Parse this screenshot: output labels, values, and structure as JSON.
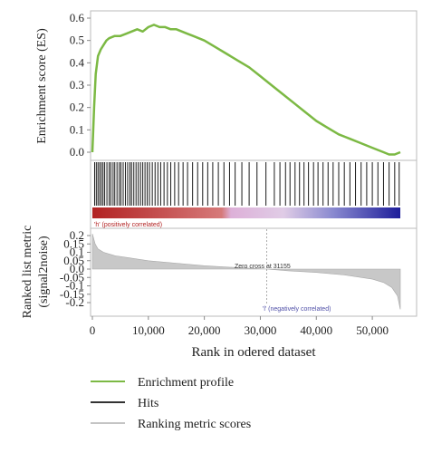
{
  "chart_data": {
    "type": "line",
    "x_axis": {
      "label": "Rank in odered dataset",
      "range": [
        0,
        56000
      ],
      "ticks": [
        0,
        10000,
        20000,
        30000,
        40000,
        50000
      ],
      "tick_labels": [
        "0",
        "10,000",
        "20,000",
        "30,000",
        "40,000",
        "50,000"
      ]
    },
    "enrichment": {
      "ylabel": "Enrichment score (ES)",
      "ylim": [
        -0.02,
        0.6
      ],
      "yticks": [
        0.0,
        0.1,
        0.2,
        0.3,
        0.4,
        0.5,
        0.6
      ],
      "ytick_labels": [
        "0.0",
        "0.1",
        "0.2",
        "0.3",
        "0.4",
        "0.5",
        "0.6"
      ],
      "series": {
        "x": [
          0,
          300,
          600,
          1000,
          1500,
          2000,
          2500,
          3000,
          4000,
          5000,
          6000,
          7000,
          8000,
          9000,
          10000,
          11000,
          12000,
          13000,
          14000,
          15000,
          16000,
          17000,
          18000,
          20000,
          22000,
          24000,
          26000,
          28000,
          30000,
          32000,
          34000,
          36000,
          38000,
          40000,
          42000,
          44000,
          46000,
          48000,
          50000,
          52000,
          53000,
          54000,
          55000
        ],
        "y": [
          0.0,
          0.2,
          0.35,
          0.43,
          0.46,
          0.48,
          0.5,
          0.51,
          0.52,
          0.52,
          0.53,
          0.54,
          0.55,
          0.54,
          0.56,
          0.57,
          0.56,
          0.56,
          0.55,
          0.55,
          0.54,
          0.53,
          0.52,
          0.5,
          0.47,
          0.44,
          0.41,
          0.38,
          0.34,
          0.3,
          0.26,
          0.22,
          0.18,
          0.14,
          0.11,
          0.08,
          0.06,
          0.04,
          0.02,
          0.0,
          -0.01,
          -0.01,
          0.0
        ]
      }
    },
    "hits": {
      "positions": [
        400,
        700,
        1000,
        1300,
        1600,
        1900,
        2200,
        2600,
        3000,
        3300,
        3700,
        4000,
        4400,
        4800,
        5100,
        5500,
        5900,
        6300,
        6700,
        7000,
        7400,
        7800,
        8200,
        8600,
        9000,
        9400,
        9800,
        10200,
        10700,
        11200,
        11700,
        12200,
        12800,
        13400,
        14000,
        14700,
        15400,
        16200,
        17000,
        17900,
        18800,
        19700,
        20600,
        21500,
        22500,
        23500,
        24500,
        25500,
        26700,
        28000,
        29400,
        31000,
        32500,
        33500,
        34500,
        35300,
        36200,
        37000,
        37800,
        38600,
        39500,
        40300,
        41200,
        42100,
        43000,
        44000,
        45000,
        46000,
        47000,
        48000,
        49000,
        50000,
        51000,
        52000,
        53000,
        54000,
        54800
      ]
    },
    "ranked_metric": {
      "ylabel_line1": "Ranked list metric",
      "ylabel_line2": "(signal2noise)",
      "ylim": [
        -0.25,
        0.25
      ],
      "yticks": [
        0.2,
        0.15,
        0.1,
        0.05,
        0.0,
        -0.05,
        -0.1,
        -0.15,
        -0.2
      ],
      "ytick_labels": [
        "0.2",
        "0.15",
        "0.1",
        "0.05",
        "0.0",
        "-0.05",
        "-0.1",
        "-0.15",
        "-0.2"
      ],
      "series": {
        "x": [
          0,
          500,
          1000,
          2000,
          4000,
          6000,
          10000,
          15000,
          20000,
          25000,
          31155,
          35000,
          40000,
          45000,
          50000,
          52000,
          53500,
          54500,
          55000
        ],
        "y": [
          0.21,
          0.15,
          0.12,
          0.1,
          0.08,
          0.07,
          0.05,
          0.035,
          0.02,
          0.01,
          0.0,
          -0.01,
          -0.02,
          -0.035,
          -0.06,
          -0.08,
          -0.11,
          -0.16,
          -0.24
        ]
      },
      "zero_cross_label": "Zero cross at 31155",
      "zero_cross_x": 31155,
      "positive_label": "'h' (positively correlated)",
      "negative_label": "'l' (negatively correlated)"
    },
    "colors": {
      "enrichment": "#7cb944",
      "hits": "#1a1a1a",
      "ranking": "#c8c8c8",
      "heat_red": "#b22222",
      "heat_pink": "#ddb0d8",
      "heat_blue": "#1d1d9a",
      "annotation": "#5050a8",
      "legend_hits": "#333333",
      "legend_ranking": "#c4c4c4"
    },
    "legend": [
      {
        "label": "Enrichment profile",
        "color": "#7cb944"
      },
      {
        "label": "Hits",
        "color": "#333333"
      },
      {
        "label": "Ranking metric scores",
        "color": "#c4c4c4"
      }
    ]
  }
}
